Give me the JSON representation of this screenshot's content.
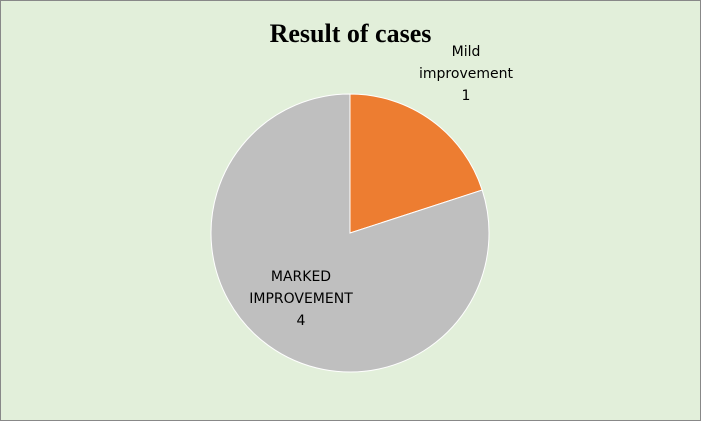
{
  "chart_data": {
    "type": "pie",
    "title": "Result of cases",
    "categories": [
      "Mild improvement",
      "MARKED IMPROVEMENT"
    ],
    "values": [
      1,
      4
    ],
    "colors": [
      "#ed7d31",
      "#bfbfbf"
    ]
  }
}
